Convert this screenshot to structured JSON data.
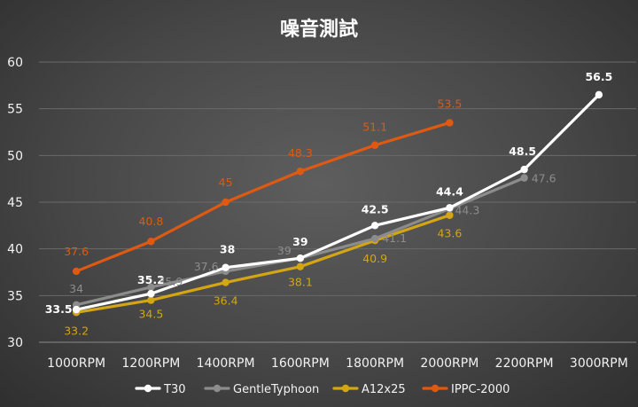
{
  "chart_data": {
    "type": "line",
    "title": "噪音測試",
    "xlabel": "",
    "ylabel": "",
    "categories": [
      "1000RPM",
      "1200RPM",
      "1400RPM",
      "1600RPM",
      "1800RPM",
      "2000RPM",
      "2200RPM",
      "3000RPM"
    ],
    "ylim": [
      30,
      60
    ],
    "yticks": [
      30,
      35,
      40,
      45,
      50,
      55,
      60
    ],
    "grid": true,
    "legend_position": "bottom",
    "series": [
      {
        "name": "T30",
        "color": "#ffffff",
        "values": [
          33.5,
          35.2,
          38,
          39,
          42.5,
          44.4,
          48.5,
          56.5
        ],
        "labels": [
          "33.5",
          "35.2",
          "38",
          "39",
          "42.5",
          "44.4",
          "48.5",
          "56.5"
        ]
      },
      {
        "name": "GentleTyphoon",
        "color": "#8c8c8c",
        "values": [
          34,
          35.9,
          37.6,
          39,
          41.1,
          44.3,
          47.6,
          null
        ],
        "labels": [
          "34",
          "35.9",
          "37.6",
          "39",
          "41.1",
          "44.3",
          "47.6",
          null
        ]
      },
      {
        "name": "A12x25",
        "color": "#d4a514",
        "values": [
          33.2,
          34.5,
          36.4,
          38.1,
          40.9,
          43.6,
          null,
          null
        ],
        "labels": [
          "33.2",
          "34.5",
          "36.4",
          "38.1",
          "40.9",
          "43.6",
          null,
          null
        ]
      },
      {
        "name": "IPPC-2000",
        "color": "#de5a12",
        "values": [
          37.6,
          40.8,
          45,
          48.3,
          51.1,
          53.5,
          null,
          null
        ],
        "labels": [
          "37.6",
          "40.8",
          "45",
          "48.3",
          "51.1",
          "53.5",
          null,
          null
        ]
      }
    ]
  }
}
